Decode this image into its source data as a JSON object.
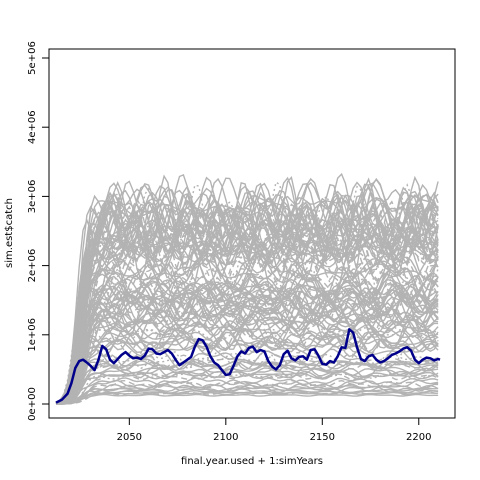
{
  "chart_data": {
    "type": "line",
    "title": "",
    "xlabel": "final.year.used + 1:simYears",
    "ylabel": "sim.est$catch",
    "xlim": [
      2012,
      2211
    ],
    "ylim": [
      0,
      5000000
    ],
    "x_ticks": [
      2050,
      2100,
      2150,
      2200
    ],
    "y_ticks": [
      {
        "value": 0,
        "label": "0e+00"
      },
      {
        "value": 1000000,
        "label": "1e+06"
      },
      {
        "value": 2000000,
        "label": "2e+06"
      },
      {
        "value": 3000000,
        "label": "3e+06"
      },
      {
        "value": 4000000,
        "label": "4e+06"
      },
      {
        "value": 5000000,
        "label": "5e+06"
      }
    ],
    "grid": false,
    "legend": "none",
    "colors": {
      "simulations": "#b3b3b3",
      "median": "#00008b"
    },
    "simulation_count": 120,
    "median_series": {
      "x": [
        2012,
        2015,
        2018,
        2020,
        2022,
        2024,
        2026,
        2028,
        2030,
        2032,
        2034,
        2036,
        2038,
        2040,
        2042,
        2044,
        2046,
        2048,
        2050,
        2052,
        2054,
        2056,
        2058,
        2060,
        2062,
        2064,
        2066,
        2068,
        2070,
        2072,
        2074,
        2076,
        2078,
        2080,
        2082,
        2084,
        2086,
        2088,
        2090,
        2092,
        2094,
        2096,
        2098,
        2100,
        2102,
        2104,
        2106,
        2108,
        2110,
        2112,
        2114,
        2116,
        2118,
        2120,
        2122,
        2124,
        2126,
        2128,
        2130,
        2132,
        2134,
        2136,
        2138,
        2140,
        2142,
        2144,
        2146,
        2148,
        2150,
        2152,
        2154,
        2156,
        2158,
        2160,
        2162,
        2164,
        2166,
        2168,
        2170,
        2172,
        2174,
        2176,
        2178,
        2180,
        2182,
        2184,
        2186,
        2188,
        2190,
        2192,
        2194,
        2196,
        2198,
        2200,
        2202,
        2204,
        2206,
        2208,
        2210,
        2211
      ],
      "y": [
        20000,
        60000,
        150000,
        300000,
        520000,
        620000,
        640000,
        600000,
        550000,
        490000,
        640000,
        840000,
        790000,
        640000,
        590000,
        650000,
        710000,
        750000,
        700000,
        660000,
        670000,
        650000,
        700000,
        800000,
        790000,
        730000,
        720000,
        750000,
        780000,
        730000,
        640000,
        560000,
        600000,
        640000,
        680000,
        830000,
        940000,
        920000,
        830000,
        690000,
        600000,
        560000,
        490000,
        420000,
        430000,
        550000,
        690000,
        760000,
        730000,
        810000,
        830000,
        750000,
        780000,
        760000,
        620000,
        540000,
        500000,
        560000,
        720000,
        770000,
        660000,
        630000,
        680000,
        690000,
        640000,
        780000,
        790000,
        700000,
        580000,
        570000,
        620000,
        600000,
        690000,
        820000,
        810000,
        1080000,
        1030000,
        820000,
        650000,
        620000,
        690000,
        710000,
        640000,
        600000,
        620000,
        660000,
        710000,
        730000,
        760000,
        800000,
        820000,
        770000,
        640000,
        590000,
        640000,
        670000,
        660000,
        630000,
        650000,
        640000
      ]
    }
  }
}
